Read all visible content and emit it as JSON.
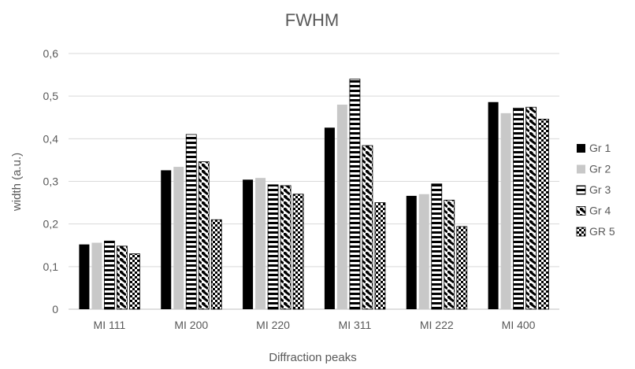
{
  "chart_data": {
    "type": "bar",
    "title": "FWHM",
    "xlabel": "Diffraction peaks",
    "ylabel": "width (a.u.)",
    "ylim": [
      0,
      0.6
    ],
    "yticks": [
      "0",
      "0,1",
      "0,2",
      "0,3",
      "0,4",
      "0,5",
      "0,6"
    ],
    "grid": true,
    "legend_position": "right",
    "categories": [
      "MI 111",
      "MI 200",
      "MI 220",
      "MI 311",
      "MI 222",
      "MI 400"
    ],
    "series": [
      {
        "name": "Gr 1",
        "pattern": "solid-black",
        "values": [
          0.152,
          0.326,
          0.304,
          0.426,
          0.266,
          0.486
        ]
      },
      {
        "name": "Gr 2",
        "pattern": "solid-gray",
        "values": [
          0.156,
          0.334,
          0.308,
          0.48,
          0.27,
          0.46
        ]
      },
      {
        "name": "Gr 3",
        "pattern": "horizontal-stripes",
        "values": [
          0.16,
          0.41,
          0.292,
          0.54,
          0.294,
          0.472
        ]
      },
      {
        "name": "Gr 4",
        "pattern": "diagonal-dashes",
        "values": [
          0.148,
          0.346,
          0.29,
          0.384,
          0.256,
          0.474
        ]
      },
      {
        "name": "GR 5",
        "pattern": "checkerboard",
        "values": [
          0.13,
          0.21,
          0.27,
          0.25,
          0.194,
          0.446
        ]
      }
    ]
  }
}
